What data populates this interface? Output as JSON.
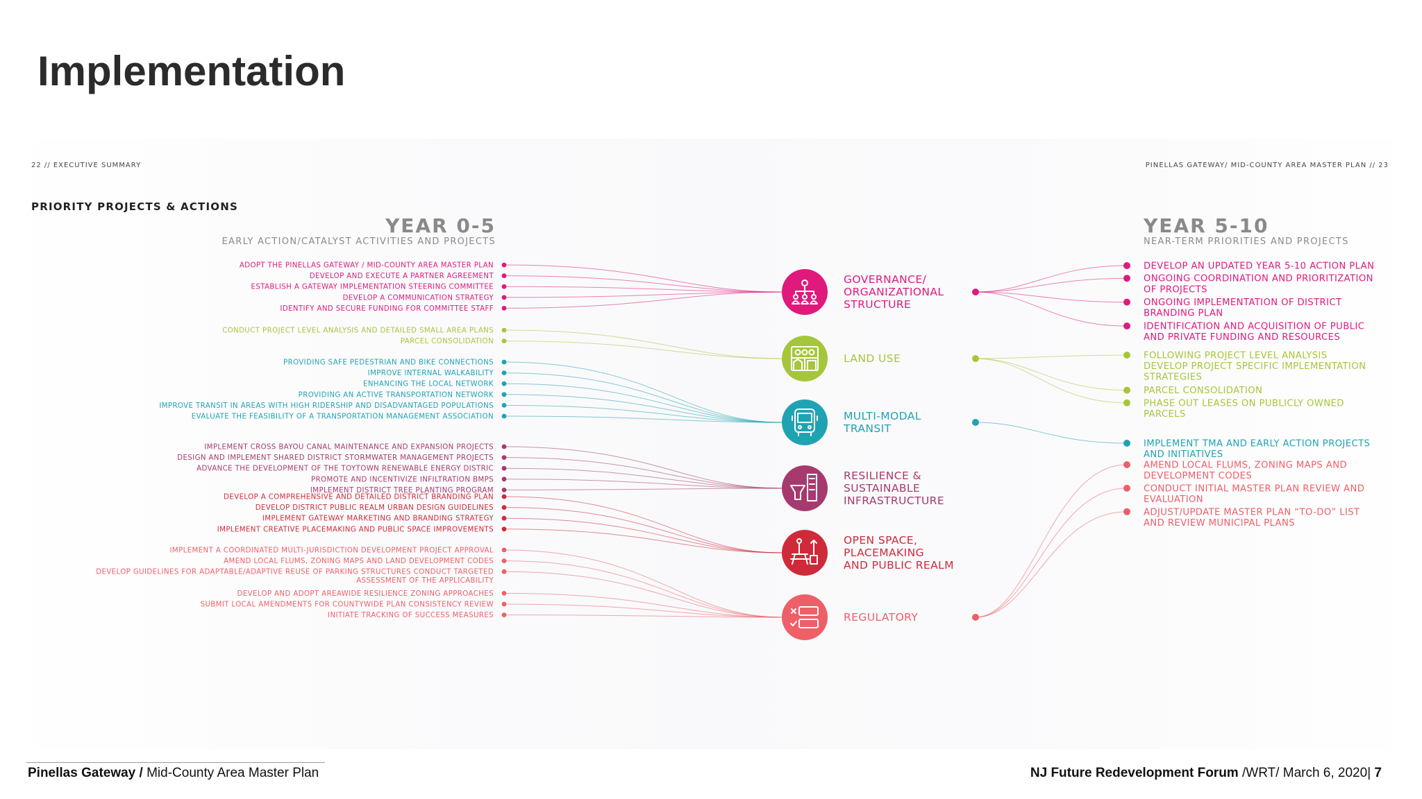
{
  "slide": {
    "title": "Implementation"
  },
  "report": {
    "header_left": "22 // EXECUTIVE SUMMARY",
    "header_right": "PINELLAS GATEWAY/ MID-COUNTY AREA MASTER PLAN // 23",
    "section_title": "PRIORITY PROJECTS & ACTIONS",
    "left_year": "YEAR 0-5",
    "left_subtitle": "EARLY ACTION/CATALYST ACTIVITIES AND PROJECTS",
    "right_year": "YEAR 5-10",
    "right_subtitle": "NEAR-TERM PRIORITIES AND PROJECTS"
  },
  "colors": {
    "governance": "#e0197d",
    "land_use": "#a5c63b",
    "multi_modal": "#1fa3b3",
    "resilience": "#a63a6e",
    "open_space": "#cf2a3a",
    "regulatory": "#ee5f68",
    "heading_gray": "#8a8a8a",
    "footer_text": "#111111"
  },
  "categories": [
    {
      "key": "governance",
      "label_lines": [
        "GOVERNANCE/",
        "ORGANIZATIONAL",
        "STRUCTURE"
      ],
      "icon": "org-chart-icon",
      "left_items": [
        [
          "ADOPT THE PINELLAS GATEWAY / MID-COUNTY AREA MASTER PLAN"
        ],
        [
          "DEVELOP AND EXECUTE A PARTNER AGREEMENT"
        ],
        [
          "ESTABLISH A GATEWAY IMPLEMENTATION STEERING COMMITTEE"
        ],
        [
          "DEVELOP A COMMUNICATION STRATEGY"
        ],
        [
          "IDENTIFY AND SECURE FUNDING FOR COMMITTEE STAFF"
        ]
      ],
      "right_items": [
        [
          "DEVELOP AN UPDATED YEAR 5-10 ACTION PLAN"
        ],
        [
          "ONGOING COORDINATION AND PRIORITIZATION",
          "OF PROJECTS"
        ],
        [
          "ONGOING IMPLEMENTATION OF DISTRICT",
          "BRANDING PLAN"
        ],
        [
          "IDENTIFICATION AND ACQUISITION OF PUBLIC",
          "AND PRIVATE FUNDING AND RESOURCES"
        ]
      ]
    },
    {
      "key": "land_use",
      "label_lines": [
        "LAND USE"
      ],
      "icon": "buildings-icon",
      "left_items": [
        [
          "CONDUCT PROJECT LEVEL ANALYSIS AND DETAILED SMALL AREA PLANS"
        ],
        [
          "PARCEL CONSOLIDATION"
        ]
      ],
      "right_items": [
        [
          "FOLLOWING PROJECT LEVEL ANALYSIS",
          "DEVELOP PROJECT SPECIFIC IMPLEMENTATION",
          "STRATEGIES"
        ],
        [
          "PARCEL CONSOLIDATION"
        ],
        [
          "PHASE OUT LEASES ON PUBLICLY OWNED",
          "PARCELS"
        ]
      ]
    },
    {
      "key": "multi_modal",
      "label_lines": [
        "MULTI-MODAL",
        "TRANSIT"
      ],
      "icon": "bus-icon",
      "left_items": [
        [
          "PROVIDING SAFE PEDESTRIAN AND BIKE CONNECTIONS"
        ],
        [
          "IMPROVE INTERNAL WALKABILITY"
        ],
        [
          "ENHANCING THE LOCAL NETWORK"
        ],
        [
          "PROVIDING AN ACTIVE TRANSPORTATION NETWORK"
        ],
        [
          "IMPROVE TRANSIT IN AREAS WITH HIGH RIDERSHIP AND DISADVANTAGED POPULATIONS"
        ],
        [
          "EVALUATE THE FEASIBILITY OF A TRANSPORTATION MANAGEMENT ASSOCIATION"
        ]
      ],
      "right_items": [
        [
          "IMPLEMENT TMA AND EARLY ACTION PROJECTS",
          "AND INITIATIVES"
        ]
      ]
    },
    {
      "key": "resilience",
      "label_lines": [
        "RESILIENCE &",
        "SUSTAINABLE",
        "INFRASTRUCTURE"
      ],
      "icon": "infrastructure-icon",
      "left_items": [
        [
          "IMPLEMENT CROSS BAYOU CANAL MAINTENANCE AND EXPANSION PROJECTS"
        ],
        [
          "DESIGN AND IMPLEMENT SHARED DISTRICT STORMWATER MANAGEMENT PROJECTS"
        ],
        [
          "ADVANCE THE DEVELOPMENT OF THE TOYTOWN RENEWABLE ENERGY DISTRIC"
        ],
        [
          "PROMOTE AND INCENTIVIZE INFILTRATION BMPS"
        ],
        [
          "IMPLEMENT DISTRICT TREE PLANTING PROGRAM"
        ]
      ],
      "right_items": []
    },
    {
      "key": "open_space",
      "label_lines": [
        "OPEN SPACE,",
        "PLACEMAKING",
        "AND PUBLIC REALM"
      ],
      "icon": "picnic-table-icon",
      "left_items": [
        [
          "DEVELOP A COMPREHENSIVE AND DETAILED DISTRICT BRANDING PLAN"
        ],
        [
          "DEVELOP DISTRICT PUBLIC REALM URBAN DESIGN GUIDELINES"
        ],
        [
          "IMPLEMENT GATEWAY MARKETING AND BRANDING STRATEGY"
        ],
        [
          "IMPLEMENT CREATIVE PLACEMAKING AND PUBLIC SPACE IMPROVEMENTS"
        ]
      ],
      "right_items": []
    },
    {
      "key": "regulatory",
      "label_lines": [
        "REGULATORY"
      ],
      "icon": "checklist-icon",
      "left_items": [
        [
          "IMPLEMENT A COORDINATED MULTI-JURISDICTION DEVELOPMENT PROJECT APPROVAL"
        ],
        [
          "AMEND LOCAL FLUMS, ZONING MAPS AND LAND DEVELOPMENT CODES"
        ],
        [
          "DEVELOP GUIDELINES FOR ADAPTABLE/ADAPTIVE REUSE OF PARKING STRUCTURES CONDUCT TARGETED",
          "ASSESSMENT OF THE APPLICABILITY"
        ],
        [
          "DEVELOP AND ADOPT AREAWIDE RESILIENCE ZONING APPROACHES"
        ],
        [
          "SUBMIT LOCAL AMENDMENTS FOR COUNTYWIDE PLAN CONSISTENCY REVIEW"
        ],
        [
          "INITIATE TRACKING OF SUCCESS MEASURES"
        ]
      ],
      "right_items": [
        [
          "AMEND LOCAL FLUMS, ZONING MAPS AND",
          "DEVELOPMENT CODES"
        ],
        [
          "CONDUCT INITIAL MASTER PLAN REVIEW AND",
          "EVALUATION"
        ],
        [
          "ADJUST/UPDATE MASTER PLAN “TO-DO” LIST",
          "AND REVIEW MUNICIPAL PLANS"
        ]
      ]
    }
  ],
  "footer": {
    "left_bold": "Pinellas Gateway /",
    "left_text": " Mid-County Area Master Plan",
    "right_bold": "NJ Future Redevelopment Forum",
    "right_text": " /WRT/ March 6, 2020| ",
    "page_number": "7"
  }
}
